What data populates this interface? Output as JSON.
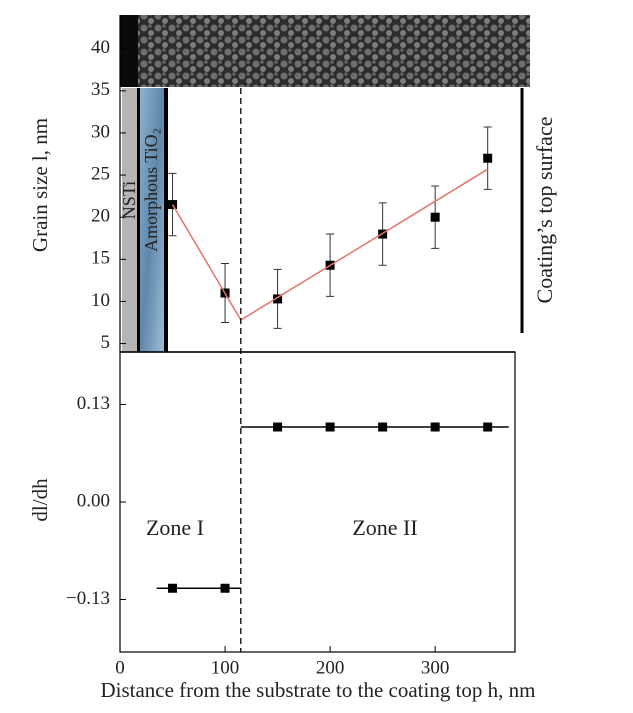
{
  "chart_data": [
    {
      "type": "scatter",
      "ylabel": "Grain size l, nm",
      "xlim": [
        0,
        376
      ],
      "ylim": [
        4,
        44
      ],
      "yticks": [
        5,
        10,
        15,
        20,
        25,
        30,
        35,
        40
      ],
      "series": [
        {
          "x": [
            50,
            100,
            150,
            200,
            250,
            300,
            350
          ],
          "values": [
            21.5,
            11,
            10.3,
            14.3,
            18,
            20,
            27
          ],
          "errors": [
            3.7,
            3.5,
            3.5,
            3.7,
            3.7,
            3.7,
            3.7
          ],
          "color": "#000000"
        },
        {
          "x": [
            50,
            115,
            350
          ],
          "values": [
            21.5,
            7.8,
            25.7
          ],
          "color": "#e8726a",
          "style": "line"
        }
      ],
      "annotations": [
        "NSTi",
        "Amorphous TiO₂",
        "Coating’s top surface"
      ]
    },
    {
      "type": "scatter",
      "ylabel": "dl/dh",
      "xlabel": "Distance from the substrate to the coating top h, nm",
      "xlim": [
        0,
        376
      ],
      "ylim": [
        -0.2,
        0.2
      ],
      "xticks": [
        0,
        100,
        200,
        300
      ],
      "yticks": [
        0.13,
        {
          "value": 0,
          "label": "0.00"
        },
        {
          "value": -0.13,
          "label": "−0.13"
        }
      ],
      "boundary": 115,
      "series": [
        {
          "x": [
            50,
            100,
            150,
            200,
            250,
            300,
            350
          ],
          "values": [
            -0.115,
            -0.115,
            0.1,
            0.1,
            0.1,
            0.1,
            0.1
          ],
          "color": "#000000"
        },
        {
          "x": [
            35,
            115
          ],
          "values": [
            -0.115,
            -0.115
          ],
          "color": "#000000",
          "style": "line"
        },
        {
          "x": [
            115,
            370
          ],
          "values": [
            0.1,
            0.1
          ],
          "color": "#000000",
          "style": "line"
        }
      ],
      "annotations": [
        "Zone I",
        "Zone II"
      ]
    }
  ]
}
